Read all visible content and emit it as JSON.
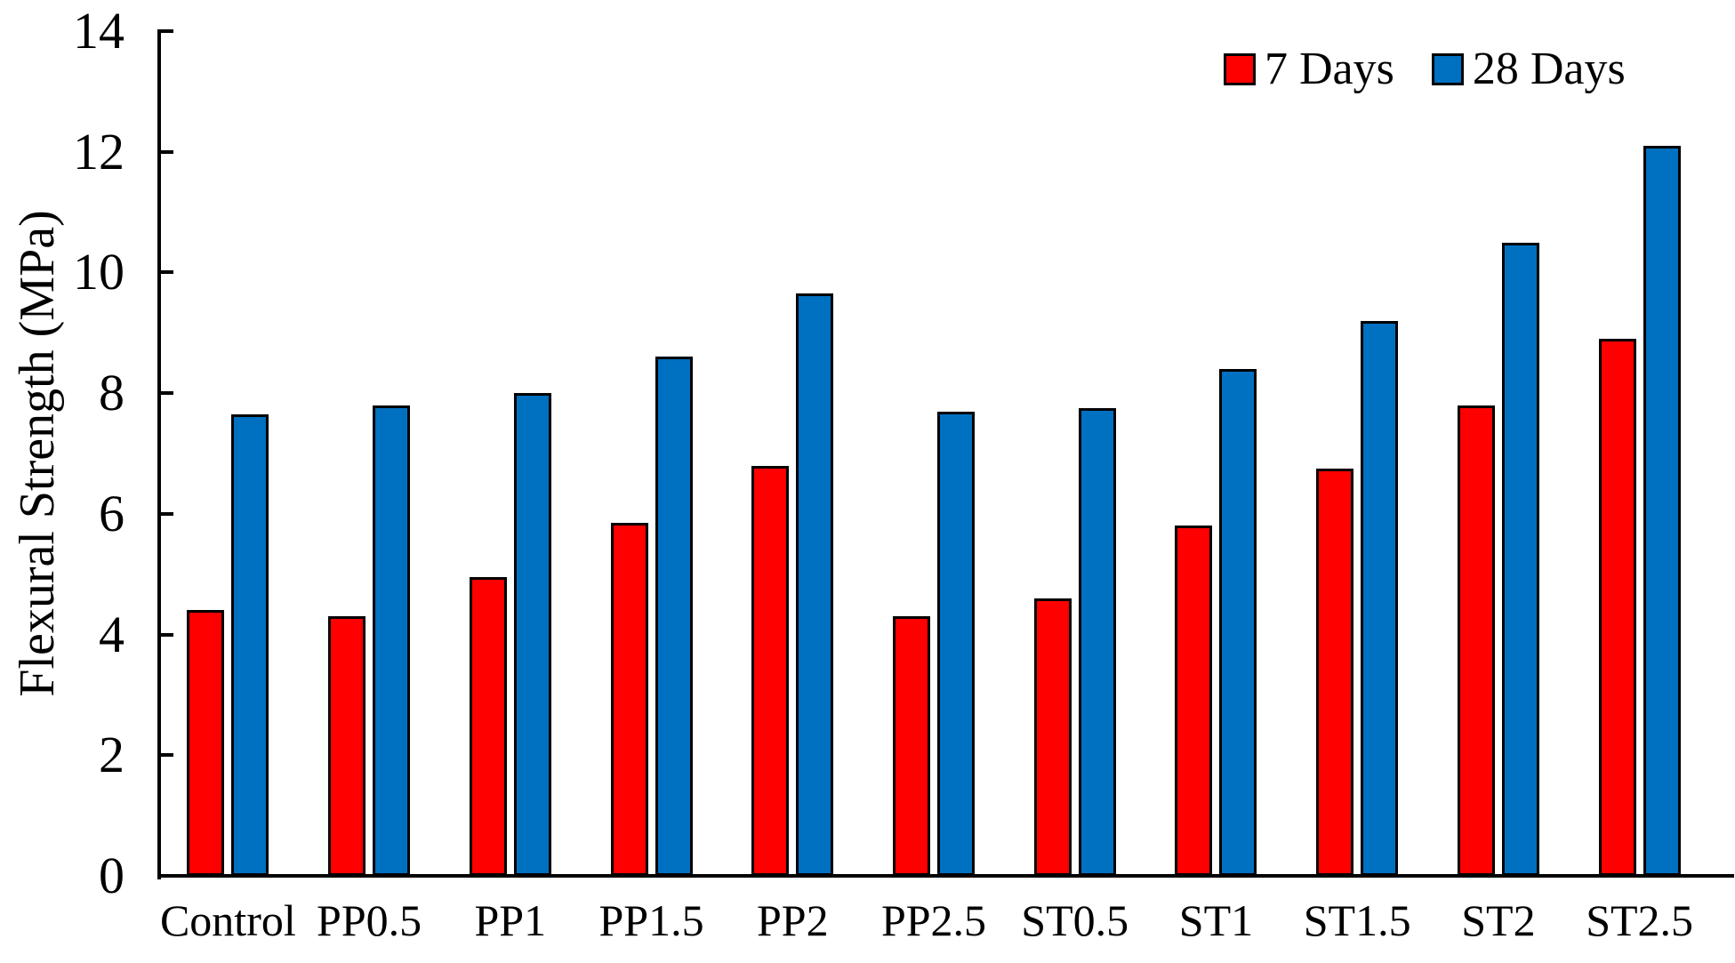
{
  "page": {
    "background": "#FFFFFF"
  },
  "chart_data": {
    "type": "bar",
    "title": "",
    "ylabel": "Flexural Strength (MPa)",
    "xlabel": "",
    "ylim": [
      0,
      14
    ],
    "yticks": [
      0,
      2,
      4,
      6,
      8,
      10,
      12,
      14
    ],
    "grid": false,
    "legend_position": "top-right",
    "categories": [
      "Control",
      "PP0.5",
      "PP1",
      "PP1.5",
      "PP2",
      "PP2.5",
      "ST0.5",
      "ST1",
      "ST1.5",
      "ST2",
      "ST2.5"
    ],
    "series": [
      {
        "name": "7 Days",
        "color": "#FF0000",
        "values": [
          4.4,
          4.3,
          4.95,
          5.85,
          6.8,
          4.3,
          4.6,
          5.8,
          6.75,
          7.8,
          8.9
        ]
      },
      {
        "name": "28 Days",
        "color": "#0070C0",
        "values": [
          7.65,
          7.8,
          8.0,
          8.6,
          9.65,
          7.7,
          7.75,
          8.4,
          9.2,
          10.5,
          12.1
        ]
      }
    ],
    "bar_outline_color": "#000000",
    "axis_color": "#000000"
  }
}
